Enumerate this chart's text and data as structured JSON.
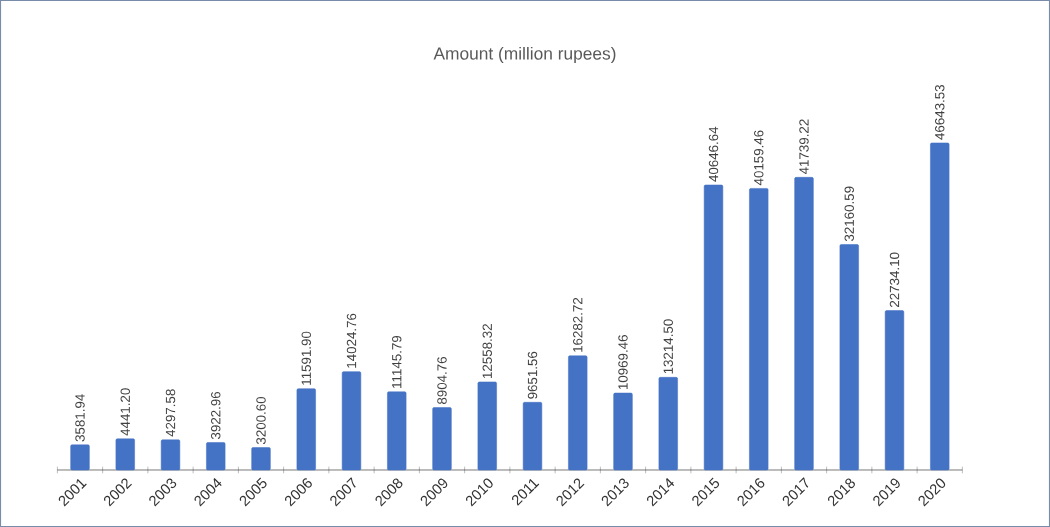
{
  "chart_data": {
    "type": "bar",
    "title": "Amount (million rupees)",
    "categories": [
      "2001",
      "2002",
      "2003",
      "2004",
      "2005",
      "2006",
      "2007",
      "2008",
      "2009",
      "2010",
      "2011",
      "2012",
      "2013",
      "2014",
      "2015",
      "2016",
      "2017",
      "2018",
      "2019",
      "2020"
    ],
    "values": [
      3581.94,
      4441.2,
      4297.58,
      3922.96,
      3200.6,
      11591.9,
      14024.76,
      11145.79,
      8904.76,
      12558.32,
      9651.56,
      16282.72,
      10969.46,
      13214.5,
      40646.64,
      40159.46,
      41739.22,
      32160.59,
      22734.1,
      46643.53
    ],
    "value_labels": [
      "3581.94",
      "4441.20",
      "4297.58",
      "3922.96",
      "3200.60",
      "11591.90",
      "14024.76",
      "11145.79",
      "8904.76",
      "12558.32",
      "9651.56",
      "16282.72",
      "10969.46",
      "13214.50",
      "40646.64",
      "40159.46",
      "41739.22",
      "32160.59",
      "22734.10",
      "46643.53"
    ],
    "color": "#4472c4"
  }
}
